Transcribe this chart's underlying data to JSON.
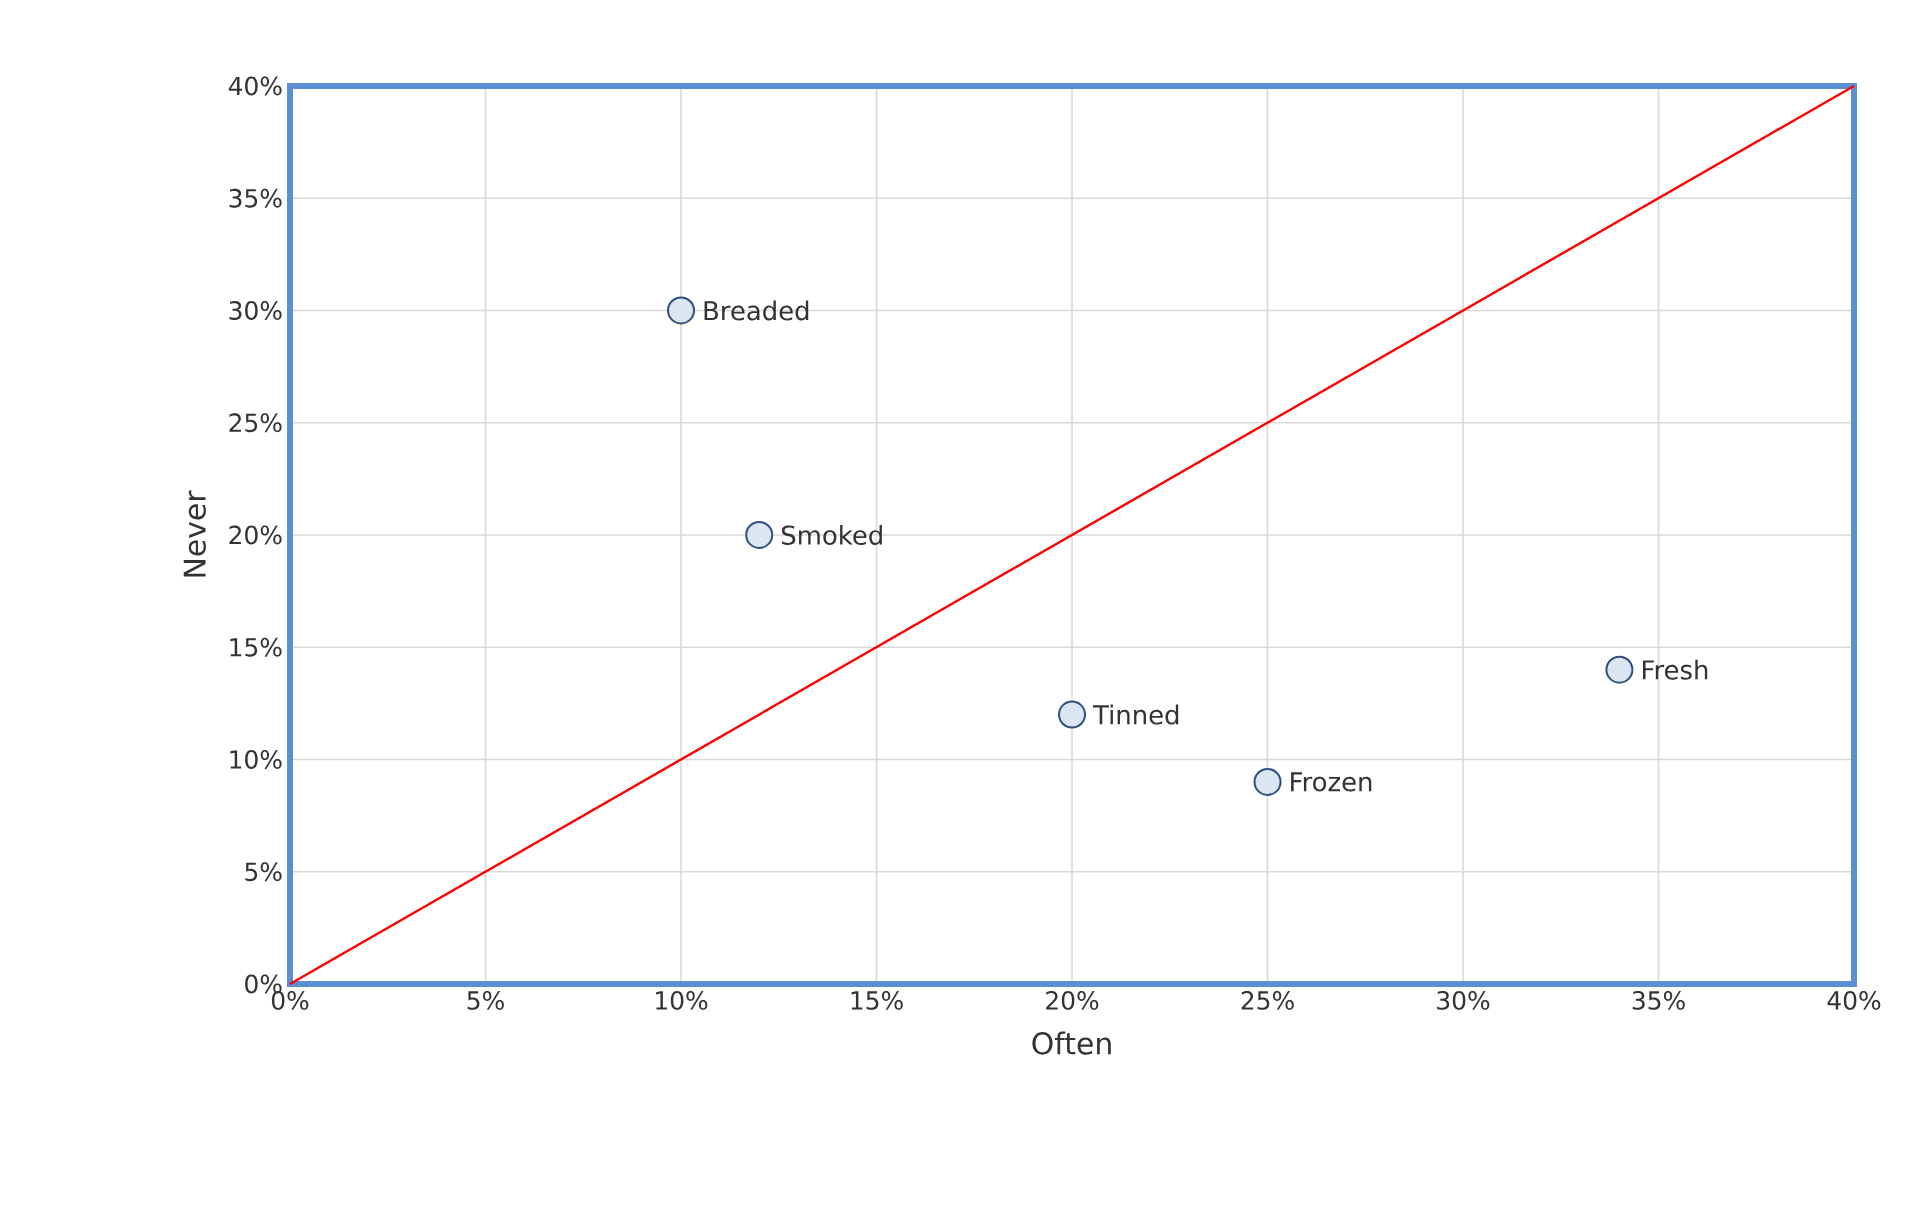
{
  "chart_data": {
    "type": "scatter",
    "xlabel": "Often",
    "ylabel": "Never",
    "xlim": [
      0,
      40
    ],
    "ylim": [
      0,
      40
    ],
    "xticks": [
      {
        "value": 0,
        "label": "0%"
      },
      {
        "value": 5,
        "label": "5%"
      },
      {
        "value": 10,
        "label": "10%"
      },
      {
        "value": 15,
        "label": "15%"
      },
      {
        "value": 20,
        "label": "20%"
      },
      {
        "value": 25,
        "label": "25%"
      },
      {
        "value": 30,
        "label": "30%"
      },
      {
        "value": 35,
        "label": "35%"
      },
      {
        "value": 40,
        "label": "40%"
      }
    ],
    "yticks": [
      {
        "value": 0,
        "label": "0%"
      },
      {
        "value": 5,
        "label": "5%"
      },
      {
        "value": 10,
        "label": "10%"
      },
      {
        "value": 15,
        "label": "15%"
      },
      {
        "value": 20,
        "label": "20%"
      },
      {
        "value": 25,
        "label": "25%"
      },
      {
        "value": 30,
        "label": "30%"
      },
      {
        "value": 35,
        "label": "35%"
      },
      {
        "value": 40,
        "label": "40%"
      }
    ],
    "grid": true,
    "series": [
      {
        "color": "#dce6f2",
        "marker": "circle",
        "x": [
          10,
          12,
          20,
          25,
          34
        ],
        "values": [
          30,
          20,
          12,
          9,
          14
        ]
      },
      {
        "type": "line",
        "color": "#ff0000",
        "marker": "none",
        "x": [
          0,
          40
        ],
        "values": [
          0,
          40
        ]
      }
    ],
    "annotations": [
      {
        "text": "Breaded",
        "x": 10,
        "y": 30
      },
      {
        "text": "Smoked",
        "x": 12,
        "y": 20
      },
      {
        "text": "Tinned",
        "x": 20,
        "y": 12
      },
      {
        "text": "Frozen",
        "x": 25,
        "y": 9
      },
      {
        "text": "Fresh",
        "x": 34,
        "y": 14
      }
    ]
  }
}
